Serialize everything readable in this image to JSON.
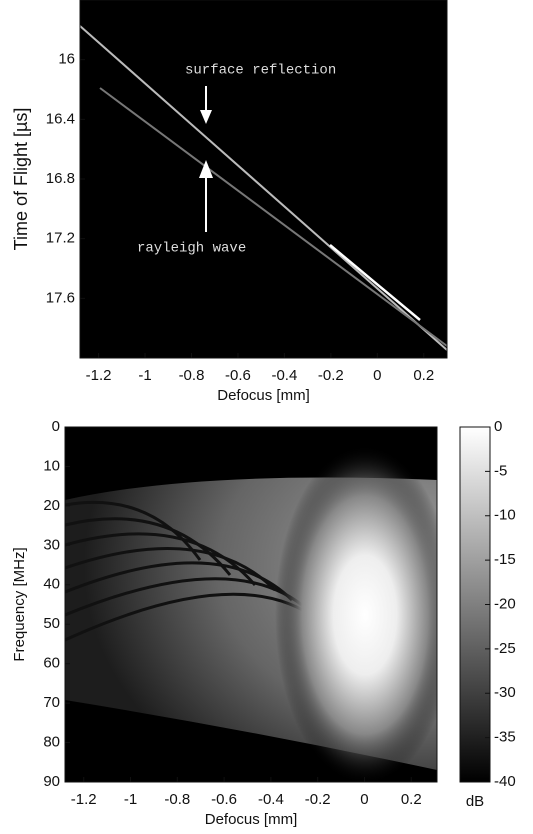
{
  "chart_data": [
    {
      "type": "heatmap",
      "xlabel": "Defocus [mm]",
      "ylabel": "Time of Flight [µs]",
      "xlim": [
        -1.28,
        0.3
      ],
      "xticks": [
        -1.2,
        -1,
        -0.8,
        -0.6,
        -0.4,
        -0.2,
        0,
        0.2
      ],
      "ylim": [
        15.6,
        18.0
      ],
      "yticks": [
        16.0,
        16.4,
        16.8,
        17.2,
        17.6
      ],
      "y_reversed": true,
      "annotations": [
        "surface reflection",
        "rayleigh wave"
      ]
    },
    {
      "type": "heatmap",
      "xlabel": "Defocus [mm]",
      "ylabel": "Frequency [MHz]",
      "xlim": [
        -1.28,
        0.31
      ],
      "xticks": [
        -1.2,
        -1,
        -0.8,
        -0.6,
        -0.4,
        -0.2,
        0,
        0.2
      ],
      "ylim": [
        0,
        90
      ],
      "yticks": [
        0,
        10,
        20,
        30,
        40,
        50,
        60,
        70,
        80,
        90
      ],
      "y_reversed": true,
      "colorbar": {
        "label": "dB",
        "lim": [
          -40,
          0
        ],
        "ticks": [
          0,
          -5,
          -10,
          -15,
          -20,
          -25,
          -30,
          -35,
          -40
        ]
      }
    }
  ]
}
